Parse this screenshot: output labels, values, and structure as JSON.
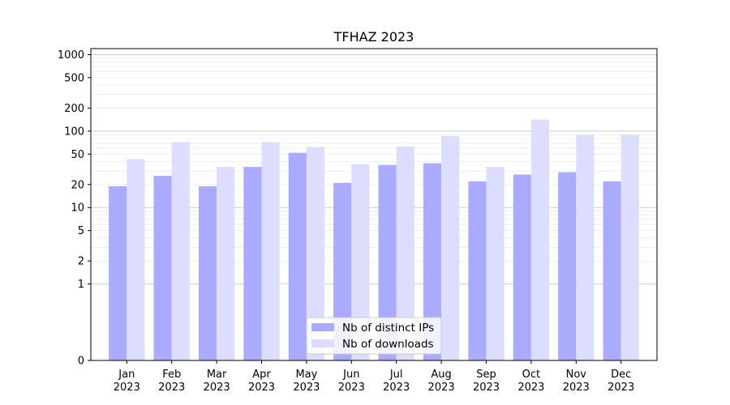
{
  "chart_data": {
    "type": "bar",
    "title": "TFHAZ 2023",
    "xlabel": "",
    "ylabel": "",
    "yscale": "symlog",
    "ylim": [
      0,
      1200
    ],
    "ytick_values": [
      0,
      1,
      2,
      5,
      10,
      20,
      50,
      100,
      200,
      500,
      1000
    ],
    "ytick_labels": [
      "0",
      "1",
      "2",
      "5",
      "10",
      "20",
      "50",
      "100",
      "200",
      "500",
      "1000"
    ],
    "categories": [
      [
        "Jan",
        "2023"
      ],
      [
        "Feb",
        "2023"
      ],
      [
        "Mar",
        "2023"
      ],
      [
        "Apr",
        "2023"
      ],
      [
        "May",
        "2023"
      ],
      [
        "Jun",
        "2023"
      ],
      [
        "Jul",
        "2023"
      ],
      [
        "Aug",
        "2023"
      ],
      [
        "Sep",
        "2023"
      ],
      [
        "Oct",
        "2023"
      ],
      [
        "Nov",
        "2023"
      ],
      [
        "Dec",
        "2023"
      ]
    ],
    "series": [
      {
        "name": "Nb of distinct IPs",
        "color": "#aaaaff",
        "values": [
          19,
          26,
          19,
          34,
          52,
          21,
          36,
          38,
          22,
          27,
          29,
          22
        ]
      },
      {
        "name": "Nb of downloads",
        "color": "#ddddff",
        "values": [
          43,
          72,
          34,
          72,
          62,
          37,
          63,
          86,
          34,
          142,
          89,
          89
        ]
      }
    ],
    "grid": true,
    "legend_position": "bottom-center"
  }
}
